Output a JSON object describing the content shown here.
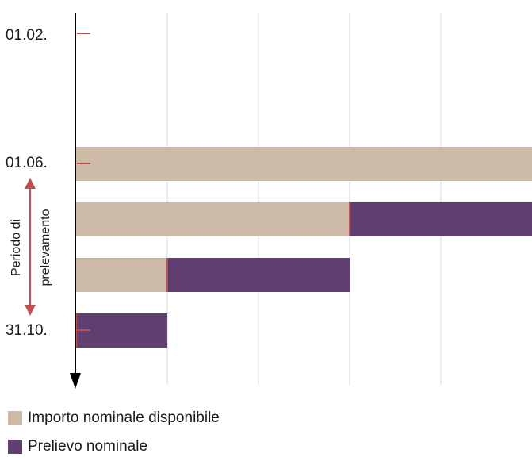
{
  "colors": {
    "available": "#cdbba8",
    "withdrawal": "#5e3f70",
    "marker": "#c0504d",
    "axis": "#000000",
    "grid": "#d9d9d9"
  },
  "chart_data": {
    "type": "bar",
    "orientation": "horizontal-stacked",
    "y_timeline_labels": [
      "01.02.",
      "01.06.",
      "31.10."
    ],
    "side_label": {
      "line1": "Periodo di",
      "line2": "prelevamento"
    },
    "x_gridlines": 4,
    "xlim": [
      0,
      5
    ],
    "series": [
      {
        "name": "Importo nominale disponibile",
        "values": [
          5,
          3,
          1,
          0
        ]
      },
      {
        "name": "Prelievo nominale",
        "values": [
          0,
          2,
          2,
          1
        ]
      }
    ],
    "legend_position": "bottom-left",
    "grid": true
  },
  "legend": {
    "items": [
      {
        "label": "Importo nominale disponibile",
        "color_key": "available"
      },
      {
        "label": "Prelievo nominale",
        "color_key": "withdrawal"
      }
    ]
  }
}
